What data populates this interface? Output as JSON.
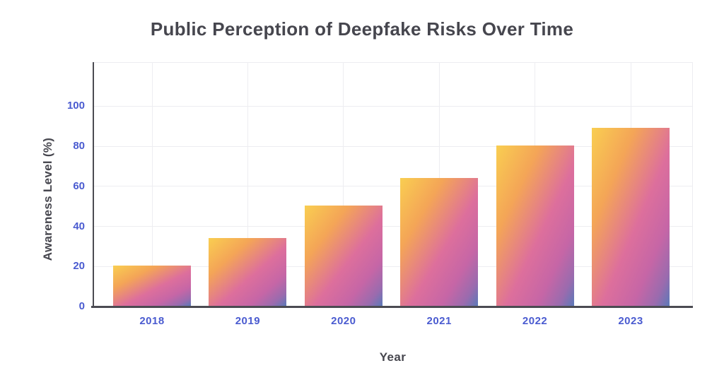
{
  "chart_data": {
    "type": "bar",
    "title": "Public Perception of Deepfake Risks Over Time",
    "xlabel": "Year",
    "ylabel": "Awareness Level (%)",
    "categories": [
      "2018",
      "2019",
      "2020",
      "2021",
      "2022",
      "2023"
    ],
    "values": [
      20,
      34,
      50,
      64,
      80,
      89
    ],
    "yticks": [
      0,
      20,
      40,
      60,
      80,
      100
    ],
    "ylim": [
      0,
      122
    ],
    "grid": true,
    "legend": false
  },
  "colors": {
    "background": "#ffffff",
    "title_text": "#46464e",
    "axis_label_text": "#46464e",
    "tick_text": "#4a5bd0",
    "axis_line": "#4b4b52",
    "gridline": "#ededf1",
    "bar_gradient": [
      "#f9ce51",
      "#f4a557",
      "#dd6f9c",
      "#c666a6",
      "#9a6bae",
      "#5b79b8"
    ],
    "bar_gradient_stops": [
      0,
      28,
      56,
      76,
      90,
      100
    ]
  }
}
